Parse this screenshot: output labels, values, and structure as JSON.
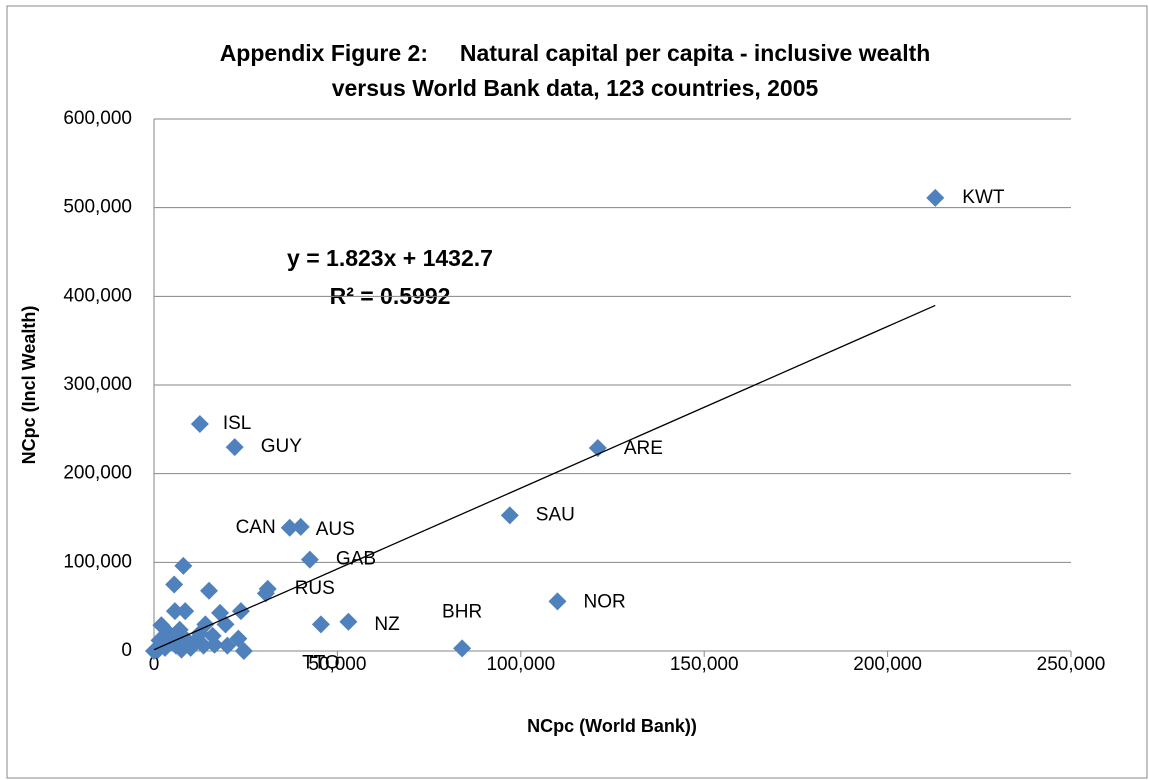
{
  "chart_data": {
    "type": "scatter",
    "title": [
      "Appendix Figure 2:     Natural capital per capita - inclusive wealth",
      "versus World Bank data, 123 countries, 2005"
    ],
    "x_label": "NCpc (World Bank))",
    "y_label": "NCpc (Incl Wealth)",
    "color": "#4f81bd",
    "grid": true,
    "xlim": [
      0,
      250000
    ],
    "ylim": [
      0,
      600000
    ],
    "xticks": [
      0,
      {
        "value": 50000,
        "label": "50,000"
      },
      {
        "value": 100000,
        "label": "100,000"
      },
      {
        "value": 150000,
        "label": "150,000"
      },
      {
        "value": 200000,
        "label": "200,000"
      },
      {
        "value": 250000,
        "label": "250,000"
      }
    ],
    "yticks": [
      0,
      {
        "value": 100000,
        "label": "100,000"
      },
      {
        "value": 200000,
        "label": "200,000"
      },
      {
        "value": 300000,
        "label": "300,000"
      },
      {
        "value": 400000,
        "label": "400,000"
      },
      {
        "value": 500000,
        "label": "500,000"
      },
      {
        "value": 600000,
        "label": "600,000"
      }
    ],
    "x": [
      213000,
      121000,
      97000,
      110000,
      84000,
      12500,
      22000,
      37000,
      40000,
      42500,
      31000,
      53000,
      45500,
      30500,
      8000,
      5500,
      15000,
      8500,
      5700,
      23700,
      18000,
      19500,
      14000,
      2000,
      7000,
      23000,
      11500,
      4500,
      16500,
      20000,
      1000,
      3000,
      10000,
      13500,
      24500,
      1500,
      4000,
      6500,
      9000,
      12500,
      16000,
      0,
      6000,
      7500
    ],
    "y": [
      511000,
      229000,
      153000,
      56000,
      3000,
      256000,
      230000,
      139000,
      140000,
      103000,
      70000,
      33000,
      30000,
      65000,
      96000,
      75000,
      68000,
      45000,
      45000,
      45000,
      43000,
      30000,
      30000,
      29000,
      24000,
      14000,
      12000,
      10000,
      7000,
      6000,
      1000,
      3500,
      3500,
      6000,
      0,
      12000,
      20000,
      16000,
      12000,
      20000,
      17000,
      0,
      6000,
      1500
    ],
    "labels": [
      "KWT",
      "ARE",
      "SAU",
      "NOR",
      "BHR",
      "ISL",
      "GUY",
      "CAN",
      "AUS",
      "GAB",
      "RUS",
      "NZ",
      "TTO",
      null,
      null,
      null,
      null,
      null,
      null,
      null,
      null,
      null,
      null,
      null,
      null,
      null,
      null,
      null,
      null,
      null,
      null,
      null,
      null,
      null,
      null,
      null,
      null,
      null,
      null,
      null,
      null,
      null,
      null,
      null
    ],
    "trendline": {
      "slope": 1.823,
      "intercept": 1432.7,
      "equation": "y = 1.823x + 1432.7",
      "r_squared": "R² = 0.5992"
    }
  }
}
